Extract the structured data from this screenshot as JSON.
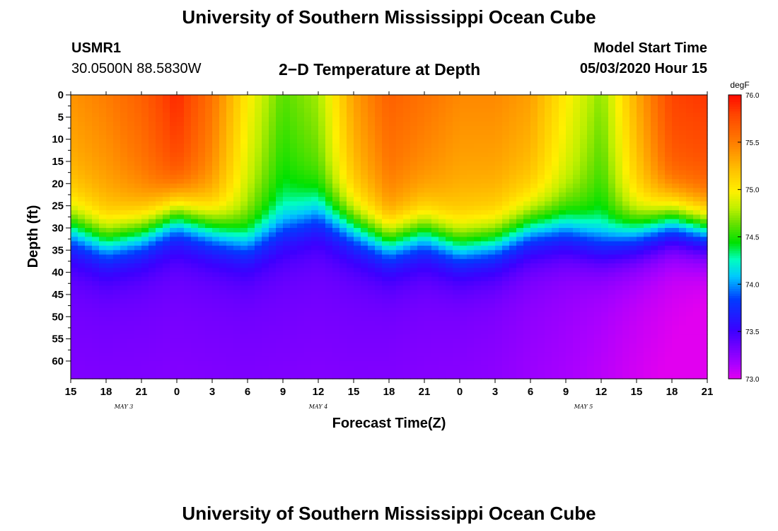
{
  "header": {
    "title_top": "University of Southern Mississippi Ocean Cube",
    "station": "USMR1",
    "coords": "30.0500N 88.5830W",
    "chart_title": "2−D Temperature at Depth",
    "model_label": "Model Start Time",
    "model_time": "05/03/2020 Hour 15",
    "title_bottom": "University of Southern Mississippi Ocean Cube"
  },
  "chart_data": {
    "type": "heatmap",
    "title": "2−D Temperature at Depth",
    "xlabel": "Forecast Time(Z)",
    "ylabel": "Depth (ft)",
    "x_tick_labels": [
      "15",
      "18",
      "21",
      "0",
      "3",
      "6",
      "9",
      "12",
      "15",
      "18",
      "21",
      "0",
      "3",
      "6",
      "9",
      "12",
      "15",
      "18",
      "21"
    ],
    "day_labels": [
      {
        "text": "MAY 3",
        "tick_index": 1.5
      },
      {
        "text": "MAY 4",
        "tick_index": 7
      },
      {
        "text": "MAY 5",
        "tick_index": 14.5
      }
    ],
    "y_tick_labels": [
      "0",
      "5",
      "10",
      "15",
      "20",
      "25",
      "30",
      "35",
      "40",
      "45",
      "50",
      "55",
      "60"
    ],
    "y_ticks": [
      0,
      5,
      10,
      15,
      20,
      25,
      30,
      35,
      40,
      45,
      50,
      55,
      60
    ],
    "ylim": [
      0,
      64
    ],
    "xlim_hours": [
      0,
      54
    ],
    "colorbar": {
      "unit": "degF",
      "tick_labels": [
        "76.0",
        "75.5",
        "75.0",
        "74.5",
        "74.0",
        "73.5",
        "73.0"
      ],
      "range": [
        73.0,
        76.0
      ]
    },
    "surface_temperature_f": [
      [
        0,
        75.4
      ],
      [
        3,
        75.5
      ],
      [
        6,
        75.65
      ],
      [
        9,
        75.9
      ],
      [
        12,
        75.55
      ],
      [
        15,
        75.0
      ],
      [
        18,
        74.6
      ],
      [
        21,
        74.75
      ],
      [
        24,
        75.35
      ],
      [
        27,
        75.65
      ],
      [
        30,
        75.55
      ],
      [
        33,
        75.45
      ],
      [
        36,
        75.45
      ],
      [
        39,
        75.35
      ],
      [
        42,
        75.0
      ],
      [
        45,
        74.7
      ],
      [
        48,
        75.3
      ],
      [
        51,
        75.8
      ],
      [
        54,
        75.85
      ]
    ],
    "thermocline_depth_ft": [
      [
        0,
        30
      ],
      [
        3,
        33
      ],
      [
        6,
        31
      ],
      [
        9,
        27
      ],
      [
        12,
        30
      ],
      [
        15,
        33
      ],
      [
        18,
        30
      ],
      [
        21,
        27
      ],
      [
        24,
        30
      ],
      [
        27,
        33
      ],
      [
        30,
        31
      ],
      [
        33,
        34
      ],
      [
        36,
        33
      ],
      [
        39,
        30
      ],
      [
        42,
        30
      ],
      [
        45,
        33
      ],
      [
        48,
        31
      ],
      [
        51,
        28
      ],
      [
        54,
        30
      ]
    ],
    "bottom_temperature_f": [
      [
        0,
        73.35
      ],
      [
        6,
        73.35
      ],
      [
        12,
        73.35
      ],
      [
        18,
        73.35
      ],
      [
        24,
        73.35
      ],
      [
        30,
        73.33
      ],
      [
        36,
        73.3
      ],
      [
        42,
        73.22
      ],
      [
        48,
        73.1
      ],
      [
        54,
        73.0
      ]
    ]
  }
}
